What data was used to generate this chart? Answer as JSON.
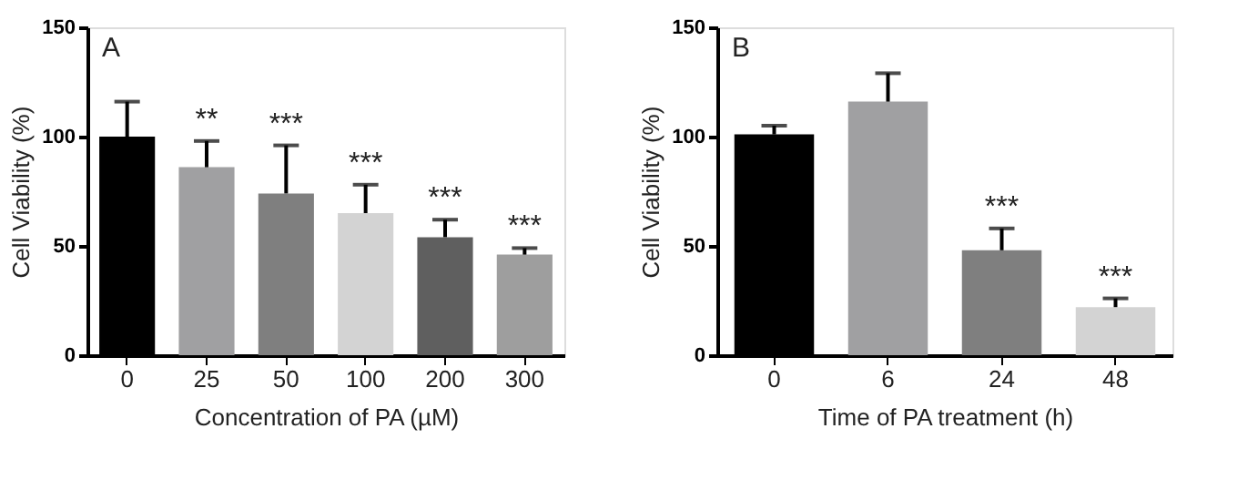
{
  "chart_data": [
    {
      "type": "bar",
      "xlabel": "Concentration  of PA (µM)",
      "ylabel": "Cell Viability (%)",
      "categories": [
        "0",
        "25",
        "50",
        "100",
        "200",
        "300"
      ],
      "values": [
        100,
        86,
        74,
        65,
        54,
        46
      ],
      "colors": [
        "#000000",
        "#a0a0a2",
        "#7f7f7f",
        "#d3d3d3",
        "#5f5f5f",
        "#9e9e9e"
      ],
      "errors": [
        [
          100,
          116
        ],
        [
          86,
          98
        ],
        [
          74,
          96
        ],
        [
          65,
          78
        ],
        [
          54,
          62
        ],
        [
          46,
          49
        ]
      ],
      "ylim": [
        0,
        150
      ],
      "yticks": [
        0,
        50,
        100,
        150
      ],
      "grid": false,
      "annotations": [
        "A",
        {
          "text": "**",
          "x": "25",
          "y": 98
        },
        {
          "text": "***",
          "x": "50",
          "y": 96
        },
        {
          "text": "***",
          "x": "100",
          "y": 78
        },
        {
          "text": "***",
          "x": "200",
          "y": 62
        },
        {
          "text": "***",
          "x": "300",
          "y": 49
        }
      ]
    },
    {
      "type": "bar",
      "xlabel": "Time of PA treatment  (h)",
      "ylabel": "Cell Viability (%)",
      "categories": [
        "0",
        "6",
        "24",
        "48"
      ],
      "values": [
        101,
        116,
        48,
        22
      ],
      "colors": [
        "#000000",
        "#a0a0a2",
        "#7f7f7f",
        "#d3d3d3"
      ],
      "errors": [
        [
          101,
          105
        ],
        [
          116,
          129
        ],
        [
          48,
          58
        ],
        [
          22,
          26
        ]
      ],
      "ylim": [
        0,
        150
      ],
      "yticks": [
        0,
        50,
        100,
        150
      ],
      "grid": false,
      "annotations": [
        "B",
        {
          "text": "***",
          "x": "24",
          "y": 58
        },
        {
          "text": "***",
          "x": "48",
          "y": 26
        }
      ]
    }
  ]
}
